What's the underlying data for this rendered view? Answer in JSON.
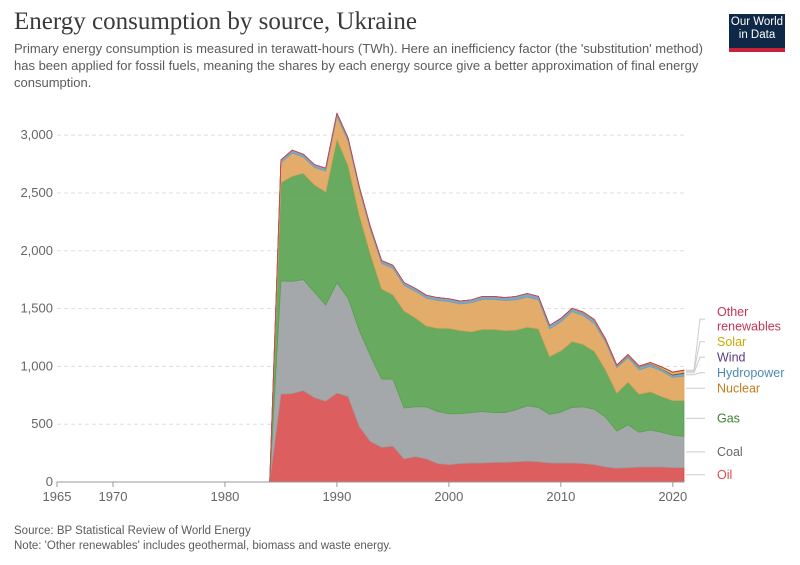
{
  "header": {
    "title": "Energy consumption by source, Ukraine",
    "subtitle": "Primary energy consumption is measured in terawatt-hours (TWh). Here an inefficiency factor (the 'substitution' method) has been applied for fossil fuels, meaning the shares by each energy source give a better approximation of final energy consumption."
  },
  "logo": {
    "line1": "Our World",
    "line2": "in Data"
  },
  "footer": {
    "source": "Source: BP Statistical Review of World Energy",
    "note": "Note: 'Other renewables' includes geothermal, biomass and waste energy."
  },
  "chart_data": {
    "type": "area",
    "stacked": true,
    "title": "Energy consumption by source, Ukraine",
    "ylabel": "TWh",
    "xlabel": "",
    "x": [
      1965,
      1984,
      1985,
      1986,
      1987,
      1988,
      1989,
      1990,
      1991,
      1992,
      1993,
      1994,
      1995,
      1996,
      1997,
      1998,
      1999,
      2000,
      2001,
      2002,
      2003,
      2004,
      2005,
      2006,
      2007,
      2008,
      2009,
      2010,
      2011,
      2012,
      2013,
      2014,
      2015,
      2016,
      2017,
      2018,
      2019,
      2020,
      2021
    ],
    "xlim": [
      1965,
      2021
    ],
    "ylim": [
      0,
      3200
    ],
    "xticks": [
      1965,
      1970,
      1980,
      1990,
      2000,
      2010,
      2020
    ],
    "yticks": [
      0,
      500,
      1000,
      1500,
      2000,
      2500,
      3000
    ],
    "ytick_labels": [
      "0",
      "500",
      "1,000",
      "1,500",
      "2,000",
      "2,500",
      "3,000"
    ],
    "series": [
      {
        "name": "Oil",
        "color": "#d94d4d",
        "values": [
          0,
          0,
          760,
          765,
          790,
          730,
          700,
          770,
          740,
          480,
          350,
          300,
          310,
          200,
          220,
          200,
          160,
          150,
          160,
          165,
          165,
          170,
          170,
          175,
          180,
          175,
          165,
          165,
          165,
          160,
          150,
          130,
          120,
          125,
          130,
          130,
          130,
          125,
          125
        ]
      },
      {
        "name": "Coal",
        "color": "#9b9ea2",
        "values": [
          0,
          0,
          980,
          970,
          960,
          910,
          830,
          955,
          850,
          830,
          740,
          590,
          580,
          440,
          430,
          450,
          450,
          440,
          430,
          435,
          445,
          430,
          430,
          450,
          480,
          470,
          420,
          440,
          480,
          490,
          480,
          430,
          320,
          370,
          300,
          320,
          300,
          280,
          270
        ]
      },
      {
        "name": "Gas",
        "color": "#58a14e",
        "values": [
          0,
          0,
          850,
          910,
          920,
          930,
          980,
          1240,
          1150,
          1000,
          880,
          780,
          730,
          840,
          770,
          700,
          720,
          740,
          720,
          700,
          710,
          720,
          710,
          690,
          680,
          680,
          500,
          530,
          570,
          540,
          500,
          410,
          330,
          370,
          330,
          330,
          310,
          300,
          310
        ]
      },
      {
        "name": "Nuclear",
        "color": "#e0a35a",
        "values": [
          0,
          0,
          170,
          200,
          140,
          150,
          180,
          200,
          210,
          220,
          210,
          220,
          230,
          220,
          230,
          240,
          240,
          230,
          230,
          250,
          260,
          260,
          260,
          260,
          260,
          250,
          240,
          250,
          260,
          250,
          240,
          240,
          220,
          210,
          210,
          220,
          220,
          200,
          210
        ]
      },
      {
        "name": "Hydropower",
        "color": "#6e9fbd",
        "values": [
          0,
          0,
          25,
          25,
          25,
          25,
          25,
          25,
          25,
          25,
          25,
          25,
          25,
          25,
          25,
          25,
          25,
          25,
          25,
          25,
          25,
          25,
          25,
          30,
          30,
          30,
          30,
          30,
          25,
          25,
          30,
          20,
          15,
          20,
          25,
          25,
          20,
          20,
          25
        ]
      },
      {
        "name": "Wind",
        "color": "#6f4a96",
        "values": [
          0,
          0,
          0,
          0,
          0,
          0,
          0,
          0,
          0,
          0,
          0,
          0,
          0,
          0,
          0,
          0,
          0,
          0,
          0,
          0,
          0,
          0,
          0,
          0,
          0,
          0,
          0,
          0,
          1,
          2,
          2,
          3,
          3,
          3,
          3,
          3,
          4,
          8,
          9
        ]
      },
      {
        "name": "Solar",
        "color": "#e6c81c",
        "values": [
          0,
          0,
          0,
          0,
          0,
          0,
          0,
          0,
          0,
          0,
          0,
          0,
          0,
          0,
          0,
          0,
          0,
          0,
          0,
          0,
          0,
          0,
          0,
          0,
          0,
          0,
          0,
          0,
          1,
          3,
          3,
          3,
          3,
          3,
          4,
          5,
          10,
          15,
          16
        ]
      },
      {
        "name": "Other renewables",
        "color": "#c43556",
        "values": [
          0,
          0,
          0,
          0,
          0,
          0,
          0,
          0,
          0,
          0,
          0,
          0,
          0,
          0,
          0,
          0,
          0,
          0,
          0,
          0,
          0,
          0,
          0,
          0,
          0,
          0,
          0,
          0,
          1,
          1,
          1,
          2,
          2,
          2,
          2,
          2,
          3,
          3,
          3
        ]
      }
    ],
    "legend_position": "right",
    "legend_label_color": {
      "Oil": "#d94d4d",
      "Coal": "#666666",
      "Gas": "#3d7e34",
      "Nuclear": "#c47c1c",
      "Hydropower": "#4a8bb3",
      "Wind": "#5c3a85",
      "Solar": "#c9aa00",
      "Other renewables": "#c43556"
    },
    "legend_lines": {
      "Oil": [
        "Oil"
      ],
      "Coal": [
        "Coal"
      ],
      "Gas": [
        "Gas"
      ],
      "Nuclear": [
        "Nuclear"
      ],
      "Hydropower": [
        "Hydropower"
      ],
      "Wind": [
        "Wind"
      ],
      "Solar": [
        "Solar"
      ],
      "Other renewables": [
        "Other",
        "renewables"
      ]
    }
  }
}
